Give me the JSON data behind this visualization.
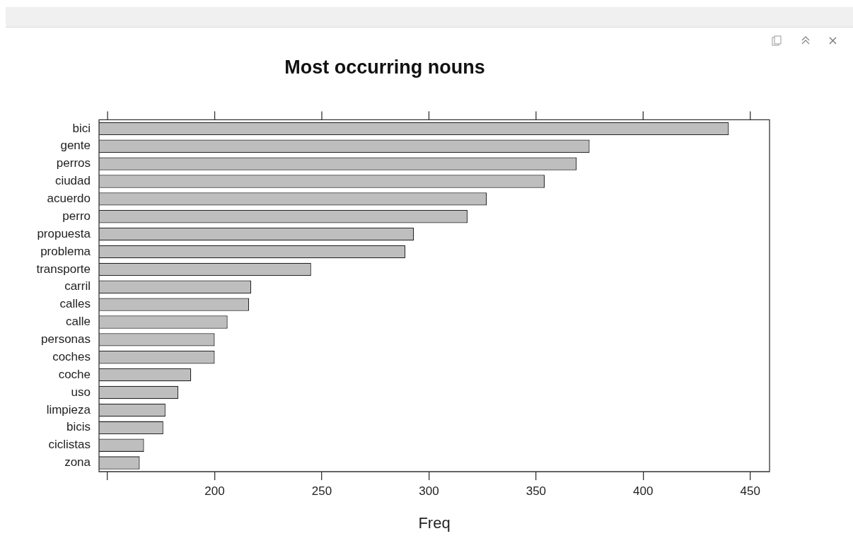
{
  "chart_data": {
    "type": "bar",
    "orientation": "horizontal",
    "title": "Most occurring nouns",
    "xlabel": "Freq",
    "categories": [
      "bici",
      "gente",
      "perros",
      "ciudad",
      "acuerdo",
      "perro",
      "propuesta",
      "problema",
      "transporte",
      "carril",
      "calles",
      "calle",
      "personas",
      "coches",
      "coche",
      "uso",
      "limpieza",
      "bicis",
      "ciclistas",
      "zona"
    ],
    "values": [
      440,
      375,
      369,
      354,
      327,
      318,
      293,
      289,
      245,
      217,
      216,
      206,
      200,
      200,
      189,
      183,
      177,
      176,
      167,
      165
    ],
    "color": "#bebebe",
    "xlim": [
      146,
      459
    ],
    "xticks": [
      {
        "value": 150,
        "label": null
      },
      200,
      250,
      300,
      350,
      400,
      450
    ],
    "grid": false,
    "legend": false
  }
}
